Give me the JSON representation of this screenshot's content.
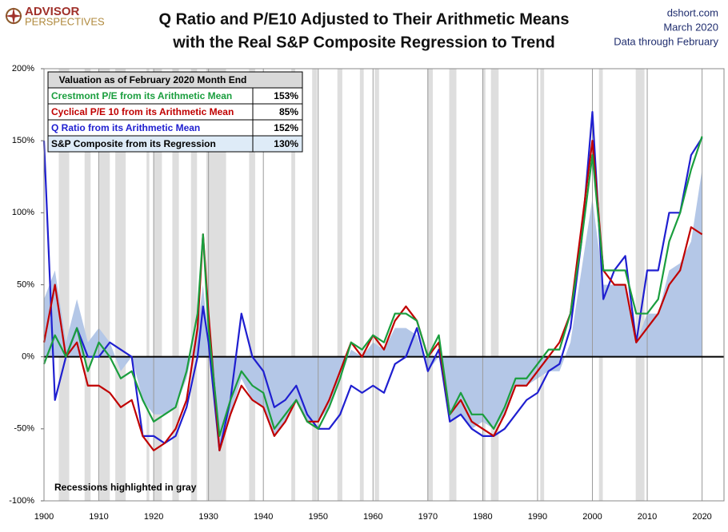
{
  "chart_data": {
    "type": "line",
    "brand": [
      "ADVISOR",
      "PERSPECTIVES"
    ],
    "title": [
      "Q Ratio and P/E10 Adjusted to Their Arithmetic Means",
      "with the Real S&P Composite Regression to Trend"
    ],
    "source": [
      "dshort.com",
      "March 2020",
      "Data through February"
    ],
    "table_title": "Valuation as of February 2020 Month End",
    "annotation": "Recessions highlighted in gray",
    "xlim": [
      1900,
      2024
    ],
    "xticks": [
      1900,
      1910,
      1920,
      1930,
      1940,
      1950,
      1960,
      1970,
      1980,
      1990,
      2000,
      2010,
      2020
    ],
    "ylim": [
      -100,
      200
    ],
    "yticks": [
      {
        "value": -100,
        "label": "-100%"
      },
      {
        "value": -50,
        "label": "-50%"
      },
      {
        "value": 0,
        "label": "0%"
      },
      {
        "value": 50,
        "label": "50%"
      },
      {
        "value": 100,
        "label": "100%"
      },
      {
        "value": 150,
        "label": "150%"
      },
      {
        "value": 200,
        "label": "200%"
      }
    ],
    "recessions": [
      [
        1902.7,
        1904.6
      ],
      [
        1907.4,
        1908.5
      ],
      [
        1910.1,
        1912.0
      ],
      [
        1913.0,
        1914.9
      ],
      [
        1918.7,
        1919.2
      ],
      [
        1920.0,
        1921.5
      ],
      [
        1923.4,
        1924.6
      ],
      [
        1926.8,
        1927.9
      ],
      [
        1929.6,
        1933.2
      ],
      [
        1937.4,
        1938.5
      ],
      [
        1945.1,
        1945.8
      ],
      [
        1948.9,
        1949.8
      ],
      [
        1953.5,
        1954.4
      ],
      [
        1957.6,
        1958.3
      ],
      [
        1960.3,
        1961.1
      ],
      [
        1969.9,
        1970.9
      ],
      [
        1973.9,
        1975.2
      ],
      [
        1980.0,
        1980.5
      ],
      [
        1981.5,
        1982.9
      ],
      [
        1990.5,
        1991.2
      ],
      [
        2001.2,
        2001.9
      ],
      [
        2007.9,
        2009.5
      ]
    ],
    "x": [
      1900,
      1902,
      1904,
      1906,
      1908,
      1910,
      1912,
      1914,
      1916,
      1918,
      1920,
      1922,
      1924,
      1926,
      1928,
      1929,
      1930,
      1932,
      1934,
      1936,
      1938,
      1940,
      1942,
      1944,
      1946,
      1948,
      1950,
      1952,
      1954,
      1956,
      1958,
      1960,
      1962,
      1964,
      1966,
      1968,
      1970,
      1972,
      1974,
      1976,
      1978,
      1980,
      1982,
      1984,
      1986,
      1988,
      1990,
      1992,
      1994,
      1996,
      1998,
      2000,
      2002,
      2004,
      2006,
      2008,
      2010,
      2012,
      2014,
      2016,
      2018,
      2020
    ],
    "series": [
      {
        "name": "Crestmont P/E from its Arithmetic Mean",
        "color": "#1a9e3e",
        "latest": 153,
        "latest_label": "153%",
        "values": [
          -5,
          15,
          0,
          20,
          -10,
          10,
          0,
          -15,
          -10,
          -30,
          -45,
          -40,
          -35,
          -10,
          30,
          85,
          20,
          -55,
          -30,
          -10,
          -20,
          -25,
          -50,
          -40,
          -30,
          -45,
          -50,
          -35,
          -15,
          10,
          5,
          15,
          10,
          30,
          30,
          25,
          0,
          15,
          -40,
          -25,
          -40,
          -40,
          -50,
          -35,
          -15,
          -15,
          -5,
          5,
          5,
          30,
          80,
          140,
          60,
          60,
          60,
          30,
          30,
          40,
          80,
          100,
          130,
          153
        ]
      },
      {
        "name": "Cyclical P/E 10 from its Arithmetic Mean",
        "color": "#c00000",
        "latest": 85,
        "latest_label": "85%",
        "values": [
          10,
          50,
          0,
          10,
          -20,
          -20,
          -25,
          -35,
          -30,
          -55,
          -65,
          -60,
          -50,
          -30,
          20,
          85,
          30,
          -65,
          -40,
          -20,
          -30,
          -35,
          -55,
          -45,
          -30,
          -45,
          -45,
          -30,
          -10,
          10,
          0,
          15,
          5,
          25,
          35,
          25,
          0,
          10,
          -40,
          -30,
          -45,
          -50,
          -55,
          -40,
          -20,
          -20,
          -10,
          0,
          10,
          30,
          90,
          150,
          60,
          50,
          50,
          10,
          20,
          30,
          50,
          60,
          90,
          85
        ]
      },
      {
        "name": "Q Ratio from its Arithmetic Mean",
        "color": "#1f1fd0",
        "latest": 152,
        "latest_label": "152%",
        "values": [
          150,
          -30,
          0,
          20,
          0,
          0,
          10,
          5,
          0,
          -55,
          -55,
          -60,
          -55,
          -35,
          0,
          35,
          10,
          -65,
          -30,
          30,
          0,
          -10,
          -35,
          -30,
          -20,
          -40,
          -50,
          -50,
          -40,
          -20,
          -25,
          -20,
          -25,
          -5,
          0,
          20,
          -10,
          5,
          -45,
          -40,
          -50,
          -55,
          -55,
          -50,
          -40,
          -30,
          -25,
          -10,
          -5,
          20,
          80,
          170,
          40,
          60,
          70,
          10,
          60,
          60,
          100,
          100,
          140,
          152
        ]
      },
      {
        "name": "S&P Composite from its Regression",
        "color": "#b4c7e7",
        "latest": 130,
        "latest_label": "130%",
        "area": true,
        "values": [
          40,
          60,
          10,
          40,
          10,
          20,
          10,
          -10,
          0,
          -30,
          -40,
          -40,
          -35,
          -15,
          20,
          50,
          10,
          -60,
          -40,
          -15,
          -30,
          -35,
          -55,
          -45,
          -30,
          -45,
          -45,
          -35,
          -15,
          5,
          0,
          10,
          5,
          20,
          20,
          15,
          -10,
          0,
          -45,
          -40,
          -50,
          -45,
          -50,
          -40,
          -20,
          -20,
          -15,
          -10,
          -10,
          10,
          60,
          110,
          50,
          50,
          50,
          10,
          30,
          30,
          60,
          65,
          80,
          130
        ]
      }
    ]
  }
}
